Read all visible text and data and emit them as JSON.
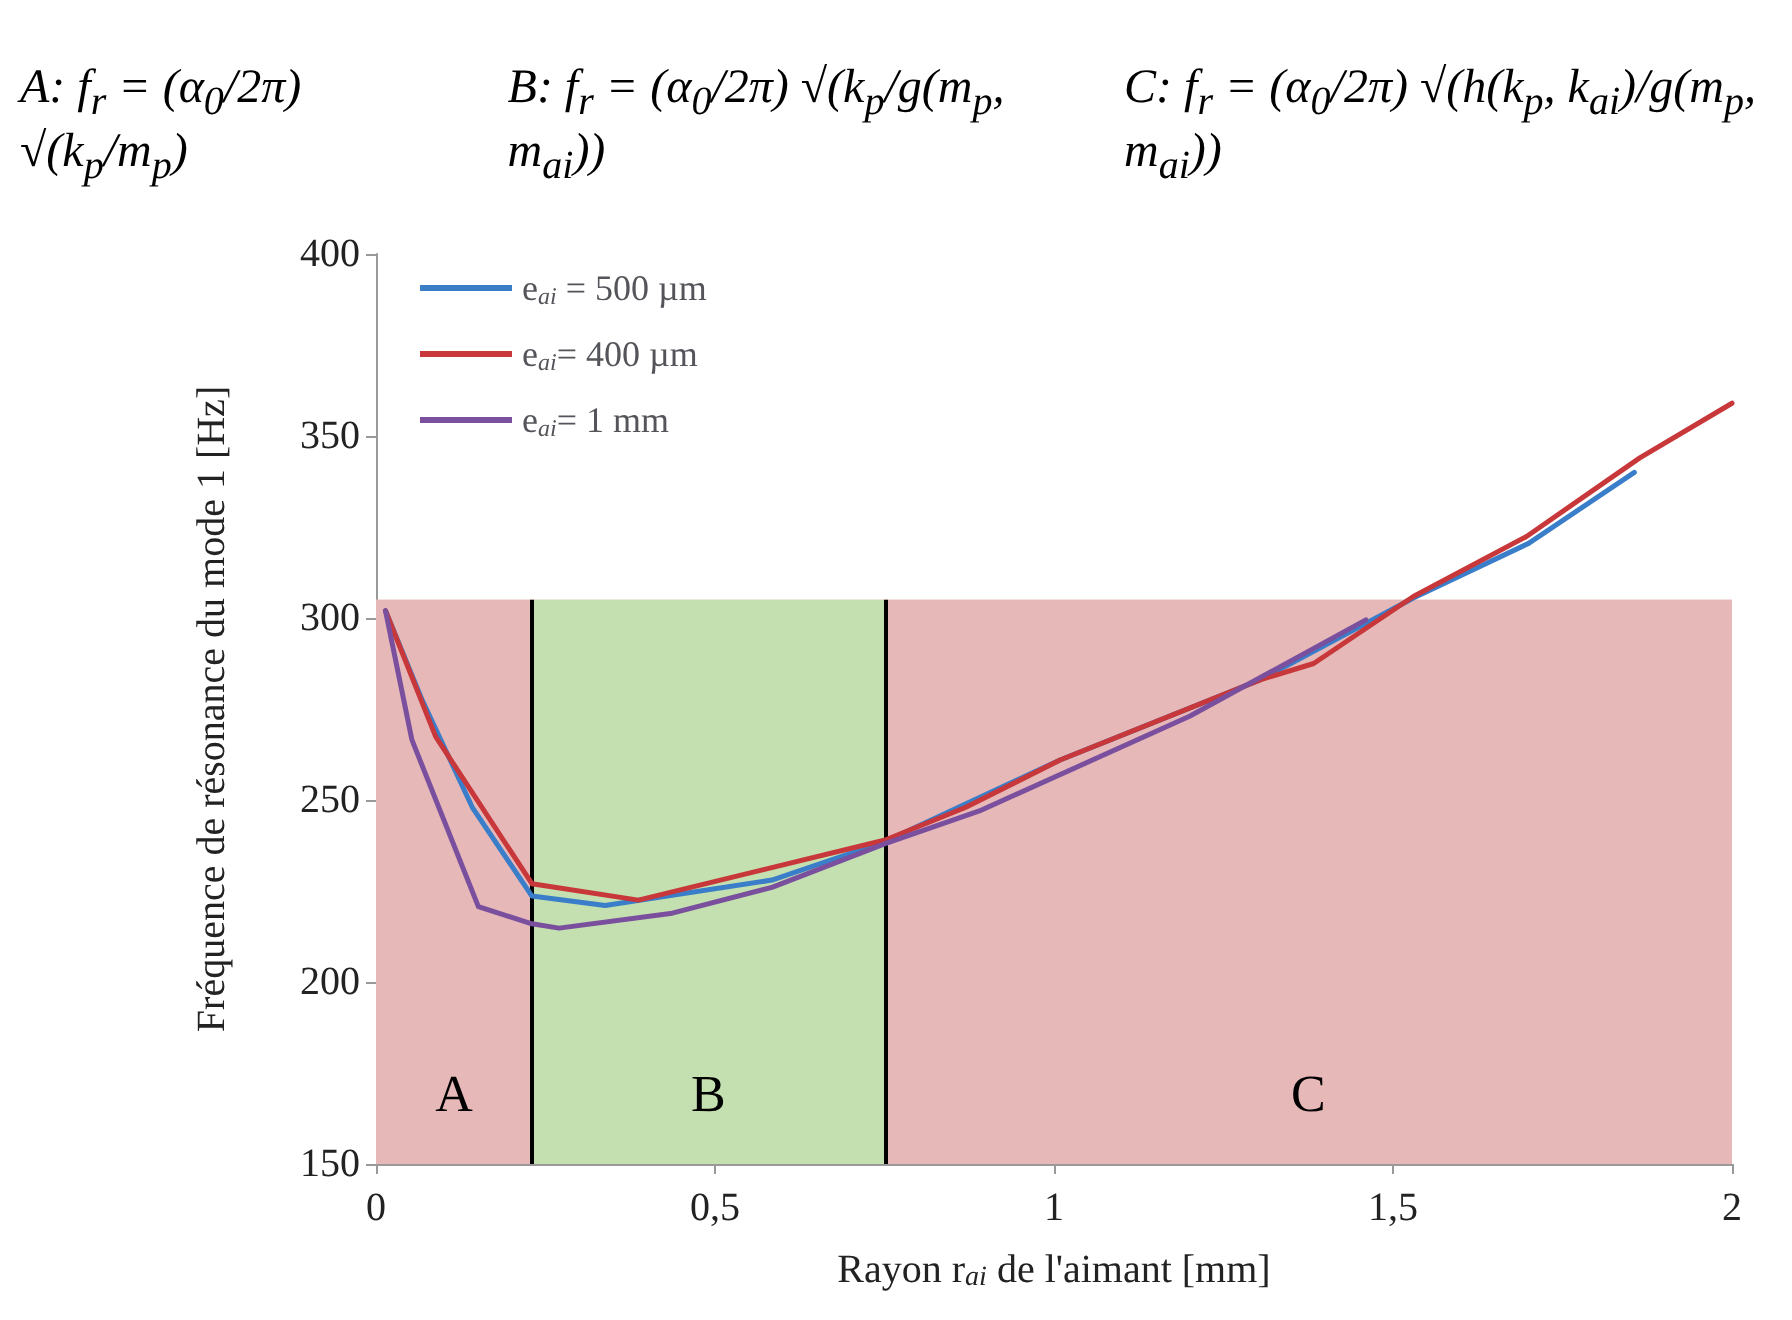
{
  "chart_data": {
    "type": "line",
    "annotations": [
      "A: f$_{r}$ = (α$_{0}$/2π) √(k$_{p}$/m$_{p}$)",
      "B: f$_{r}$ = (α$_{0}$/2π) √(k$_{p}$/g(m$_{p}$, m$_{ai}$))",
      "C: f$_{r}$ = (α$_{0}$/2π) √(h(k$_{p}$, k$_{ai}$)/g(m$_{p}$, m$_{ai}$))"
    ],
    "xlabel": "Rayon r$_{ai}$ de l'aimant [mm]",
    "ylabel": "Fréquence de résonance du mode 1 [Hz]",
    "series": [
      {
        "name": "e$_{ai}$ = 500 µm",
        "color": "#3a7dc9",
        "x": [
          0.014,
          0.068,
          0.142,
          0.23,
          0.338,
          0.584,
          0.751,
          1.009,
          1.304,
          1.53,
          1.7,
          1.856
        ],
        "values": [
          302,
          277.5,
          248,
          223.6,
          221,
          228,
          238.6,
          261,
          283,
          305.5,
          320.5,
          340
        ]
      },
      {
        "name": "e$_{ai}$= 400 µm",
        "color": "#c8373a",
        "x": [
          0.014,
          0.088,
          0.23,
          0.387,
          0.751,
          0.87,
          1.009,
          1.304,
          1.383,
          1.53,
          1.697,
          1.864,
          2.0
        ],
        "values": [
          302,
          267.4,
          227,
          222.5,
          239,
          248,
          261,
          283,
          287.5,
          305.9,
          322.4,
          344,
          359
        ]
      },
      {
        "name": "e$_{ai}$= 1 mm",
        "color": "#7a4f9e",
        "x": [
          0.014,
          0.053,
          0.151,
          0.23,
          0.27,
          0.437,
          0.584,
          0.751,
          0.89,
          1.2,
          1.46
        ],
        "values": [
          302,
          266.5,
          220.7,
          216,
          214.8,
          218.9,
          226,
          238,
          247,
          273,
          299.5
        ]
      }
    ],
    "xlim": [
      0,
      2
    ],
    "xticks": [
      0,
      {
        "value": 0.5,
        "label": "0,5"
      },
      1,
      {
        "value": 1.5,
        "label": "1,5"
      },
      2
    ],
    "ylim": [
      150,
      400
    ],
    "yticks": [
      150,
      200,
      250,
      300,
      350,
      400
    ],
    "bands": [
      {
        "axis": "y",
        "from": 150,
        "to": 305,
        "color": "#e6b8b8"
      },
      {
        "axis": "x",
        "from": 0,
        "to": 0.23,
        "label": "A",
        "color": "#e6b8b8"
      },
      {
        "axis": "x",
        "from": 0.23,
        "to": 0.75,
        "label": "B",
        "color": "#c4e0b0"
      },
      {
        "axis": "x",
        "from": 0.75,
        "to": 2,
        "label": "C",
        "color": "#e6b8b8"
      }
    ],
    "ref_lines": [
      {
        "axis": "x",
        "value": 0.23,
        "color": "#000000"
      },
      {
        "axis": "x",
        "value": 0.75,
        "color": "#000000"
      }
    ],
    "grid": false,
    "legend": "top left",
    "marker": "none",
    "line_style": "solid"
  }
}
